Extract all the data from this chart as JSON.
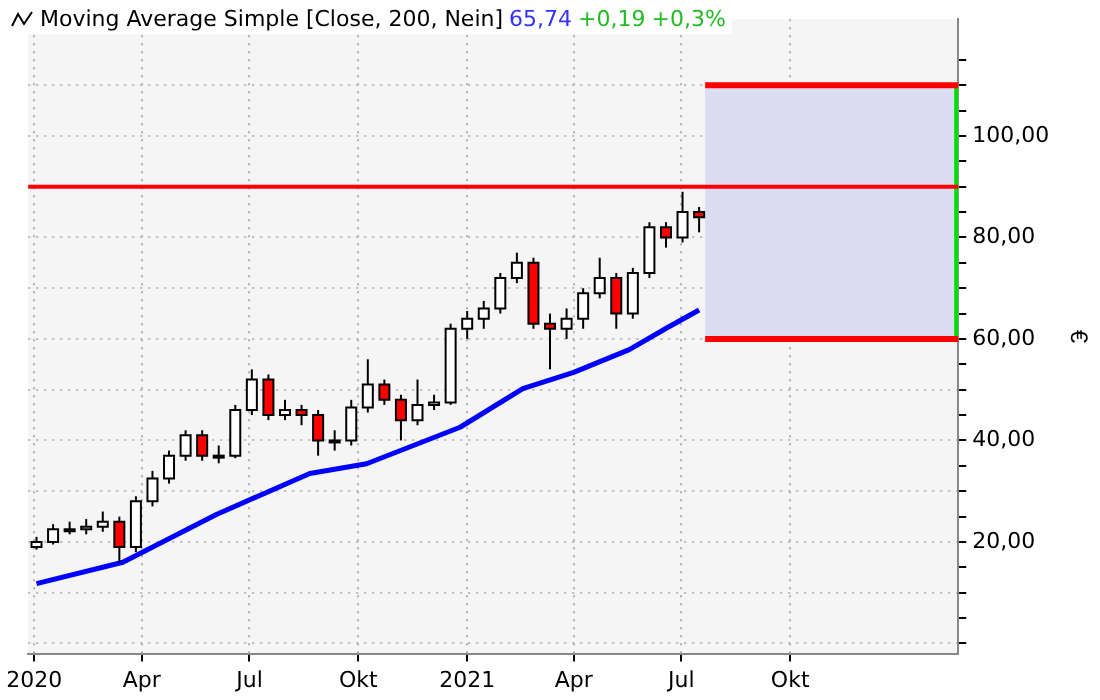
{
  "chart_data": {
    "type": "candlestick",
    "ylabel": "€",
    "legend": "top left",
    "x": [
      "2020-01-03",
      "2020-01-17",
      "2020-01-31",
      "2020-02-14",
      "2020-02-28",
      "2020-03-13",
      "2020-03-27",
      "2020-04-10",
      "2020-04-24",
      "2020-05-08",
      "2020-05-22",
      "2020-06-05",
      "2020-06-19",
      "2020-07-03",
      "2020-07-17",
      "2020-07-31",
      "2020-08-14",
      "2020-08-28",
      "2020-09-11",
      "2020-09-25",
      "2020-10-09",
      "2020-10-23",
      "2020-11-06",
      "2020-11-20",
      "2020-12-04",
      "2020-12-18",
      "2021-01-01",
      "2021-01-15",
      "2021-01-29",
      "2021-02-12",
      "2021-02-26",
      "2021-03-12",
      "2021-03-26",
      "2021-04-09",
      "2021-04-23",
      "2021-05-07",
      "2021-05-21",
      "2021-06-04",
      "2021-06-18",
      "2021-07-02",
      "2021-07-16"
    ],
    "ohlc": [
      [
        19,
        21,
        18.5,
        20
      ],
      [
        20,
        23.5,
        19.5,
        22.5
      ],
      [
        22.5,
        24,
        21.5,
        22.5
      ],
      [
        22.5,
        24.5,
        21.5,
        23
      ],
      [
        23,
        26,
        22,
        24
      ],
      [
        24,
        25,
        16,
        19
      ],
      [
        19,
        29,
        18,
        28
      ],
      [
        28,
        34,
        27,
        32.5
      ],
      [
        32.5,
        38,
        31.5,
        37
      ],
      [
        37,
        42,
        36,
        41
      ],
      [
        41,
        42,
        36,
        37
      ],
      [
        37,
        39,
        35.5,
        37
      ],
      [
        37,
        47,
        36.5,
        46
      ],
      [
        46,
        54,
        45,
        52
      ],
      [
        52,
        53,
        44,
        45
      ],
      [
        45,
        48,
        44,
        46
      ],
      [
        46,
        47,
        43,
        45
      ],
      [
        45,
        46,
        37,
        40
      ],
      [
        40,
        42,
        38,
        40
      ],
      [
        40,
        48,
        39,
        46.5
      ],
      [
        46.5,
        56,
        45.5,
        51
      ],
      [
        51,
        52,
        47,
        48
      ],
      [
        48,
        49,
        40,
        44
      ],
      [
        44,
        52,
        43,
        47
      ],
      [
        47,
        49,
        46,
        47.5
      ],
      [
        47.5,
        63,
        47,
        62
      ],
      [
        62,
        65.5,
        60,
        64
      ],
      [
        64,
        67.5,
        62,
        66
      ],
      [
        66,
        73,
        65,
        72
      ],
      [
        72,
        77,
        71,
        75
      ],
      [
        75,
        76,
        62,
        63
      ],
      [
        63,
        65,
        54,
        62
      ],
      [
        62,
        66,
        60,
        64
      ],
      [
        64,
        70,
        62,
        69
      ],
      [
        69,
        76,
        68,
        72
      ],
      [
        72,
        73,
        62,
        65
      ],
      [
        65,
        74,
        64,
        73
      ],
      [
        73,
        83,
        72,
        82
      ],
      [
        82,
        83,
        78,
        80
      ],
      [
        80,
        89,
        79,
        85
      ],
      [
        85,
        86,
        81,
        84
      ]
    ],
    "series": [
      {
        "type": "line",
        "name": "Moving Average Simple [Close, 200, Nein]",
        "color": "#0000ff",
        "x": [
          "2020-01-03",
          "2020-03-16",
          "2020-06-03",
          "2020-08-21",
          "2020-10-08",
          "2020-12-26",
          "2021-02-17",
          "2021-04-01",
          "2021-05-18",
          "2021-06-19",
          "2021-07-16"
        ],
        "values": [
          11.8,
          16,
          25.4,
          33.5,
          35.4,
          42.6,
          50.2,
          53.4,
          57.9,
          62.2,
          65.7
        ]
      }
    ],
    "annotations": [
      "65,74",
      "+0,19",
      "+0,3%"
    ],
    "ref_lines": [
      {
        "axis": "y",
        "value": 90,
        "color": "#ff0000"
      },
      {
        "axis": "y",
        "value": 110,
        "color": "#ff0000"
      },
      {
        "axis": "y",
        "value": 60,
        "color": "#ff0000"
      }
    ],
    "bands": [
      {
        "axis": "y",
        "from": 60,
        "to": 110,
        "color": "#dcdcf2"
      }
    ],
    "xlim": [
      "2019-12-27",
      "2022-02-20"
    ],
    "xticks": [
      {
        "value": "2020-01-01",
        "label": "2020"
      },
      {
        "value": "2020-04-01",
        "label": "Apr"
      },
      {
        "value": "2020-07-01",
        "label": "Jul"
      },
      {
        "value": "2020-10-01",
        "label": "Okt"
      },
      {
        "value": "2021-01-01",
        "label": "2021"
      },
      {
        "value": "2021-04-01",
        "label": "Apr"
      },
      {
        "value": "2021-07-01",
        "label": "Jul"
      },
      {
        "value": "2021-10-01",
        "label": "Okt"
      }
    ],
    "ylim": [
      -2,
      123
    ],
    "yticks": [
      {
        "value": 0,
        "label": null
      },
      {
        "value": 5,
        "label": null
      },
      {
        "value": 10,
        "label": null
      },
      {
        "value": 15,
        "label": null
      },
      {
        "value": 20,
        "label": "20,00"
      },
      {
        "value": 25,
        "label": null
      },
      {
        "value": 30,
        "label": null
      },
      {
        "value": 35,
        "label": null
      },
      {
        "value": 40,
        "label": "40,00"
      },
      {
        "value": 45,
        "label": null
      },
      {
        "value": 50,
        "label": null
      },
      {
        "value": 55,
        "label": null
      },
      {
        "value": 60,
        "label": "60,00"
      },
      {
        "value": 65,
        "label": null
      },
      {
        "value": 70,
        "label": null
      },
      {
        "value": 75,
        "label": null
      },
      {
        "value": 80,
        "label": "80,00"
      },
      {
        "value": 85,
        "label": null
      },
      {
        "value": 90,
        "label": null
      },
      {
        "value": 95,
        "label": null
      },
      {
        "value": 100,
        "label": "100,00"
      },
      {
        "value": 105,
        "label": null
      },
      {
        "value": 110,
        "label": null
      },
      {
        "value": 115,
        "label": null
      }
    ],
    "grid": true
  }
}
